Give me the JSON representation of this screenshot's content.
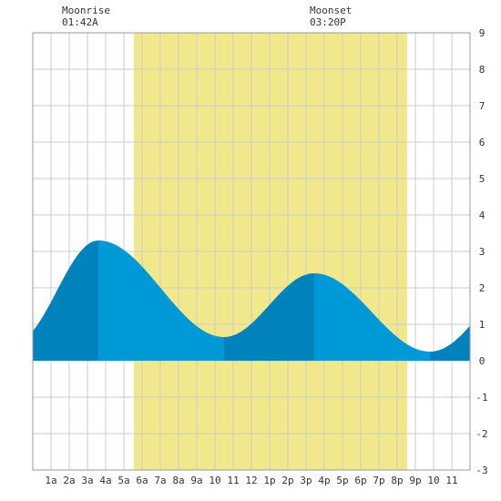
{
  "moon": {
    "moonrise_label": "Moonrise",
    "moonrise_time": "01:42A",
    "moonset_label": "Moonset",
    "moonset_time": "03:20P"
  },
  "chart_data": {
    "type": "area",
    "title": "",
    "xlabel": "",
    "ylabel": "",
    "x_range": [
      0,
      24
    ],
    "ylim": [
      -3,
      9
    ],
    "y_ticks": [
      -3,
      -2,
      -1,
      0,
      1,
      2,
      3,
      4,
      5,
      6,
      7,
      8,
      9
    ],
    "x_ticks": [
      {
        "x": 1,
        "label": "1a"
      },
      {
        "x": 2,
        "label": "2a"
      },
      {
        "x": 3,
        "label": "3a"
      },
      {
        "x": 4,
        "label": "4a"
      },
      {
        "x": 5,
        "label": "5a"
      },
      {
        "x": 6,
        "label": "6a"
      },
      {
        "x": 7,
        "label": "7a"
      },
      {
        "x": 8,
        "label": "8a"
      },
      {
        "x": 9,
        "label": "9a"
      },
      {
        "x": 10,
        "label": "10"
      },
      {
        "x": 11,
        "label": "11"
      },
      {
        "x": 12,
        "label": "12"
      },
      {
        "x": 13,
        "label": "1p"
      },
      {
        "x": 14,
        "label": "2p"
      },
      {
        "x": 15,
        "label": "3p"
      },
      {
        "x": 16,
        "label": "4p"
      },
      {
        "x": 17,
        "label": "5p"
      },
      {
        "x": 18,
        "label": "6p"
      },
      {
        "x": 19,
        "label": "7p"
      },
      {
        "x": 20,
        "label": "8p"
      },
      {
        "x": 21,
        "label": "9p"
      },
      {
        "x": 22,
        "label": "10"
      },
      {
        "x": 23,
        "label": "11"
      }
    ],
    "grid": true,
    "daylight": {
      "start": 5.55,
      "end": 20.55
    },
    "moonrise_x": 1.7,
    "moonset_x": 15.33,
    "tide_extremes": [
      {
        "x": -1.0,
        "y": 0.5
      },
      {
        "x": 3.6,
        "y": 3.3
      },
      {
        "x": 10.5,
        "y": 0.65
      },
      {
        "x": 15.45,
        "y": 2.4
      },
      {
        "x": 21.8,
        "y": 0.25
      },
      {
        "x": 28.0,
        "y": 2.8
      }
    ],
    "colors": {
      "daylight": "#f0e88a",
      "tide_light": "#0099d8",
      "tide_dark": "#0082bd",
      "grid": "#cccccc",
      "border": "#999999",
      "background": "#ffffff"
    }
  }
}
